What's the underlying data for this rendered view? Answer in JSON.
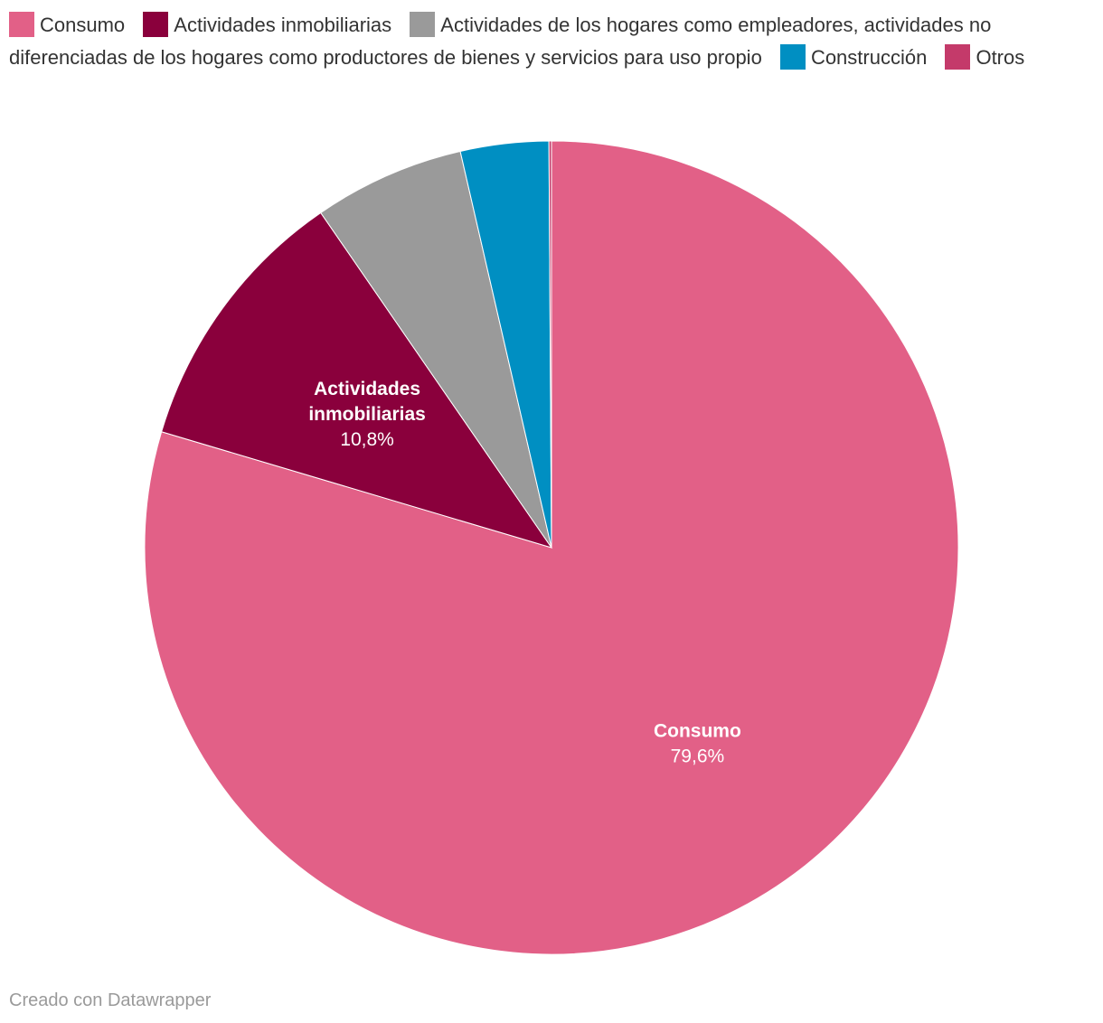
{
  "chart_data": {
    "type": "pie",
    "title": "",
    "legend_position": "top",
    "slices": [
      {
        "name": "Consumo",
        "value": 79.6,
        "color": "#e26087",
        "label_lines": [
          "Consumo"
        ],
        "value_text": "79,6%",
        "show_label": true
      },
      {
        "name": "Actividades inmobiliarias",
        "value": 10.8,
        "color": "#8a003c",
        "label_lines": [
          "Actividades",
          "inmobiliarias"
        ],
        "value_text": "10,8%",
        "show_label": true
      },
      {
        "name": "Actividades de los hogares como empleadores, actividades no diferenciadas de los hogares como productores de bienes y servicios para uso propio",
        "value": 6.0,
        "color": "#9a9a9a",
        "label_lines": [],
        "value_text": "",
        "show_label": false
      },
      {
        "name": "Construcción",
        "value": 3.5,
        "color": "#008fc2",
        "label_lines": [],
        "value_text": "",
        "show_label": false
      },
      {
        "name": "Otros",
        "value": 0.1,
        "color": "#c43a6a",
        "label_lines": [],
        "value_text": "",
        "show_label": false
      }
    ]
  },
  "footer": {
    "credit": "Creado con Datawrapper"
  }
}
